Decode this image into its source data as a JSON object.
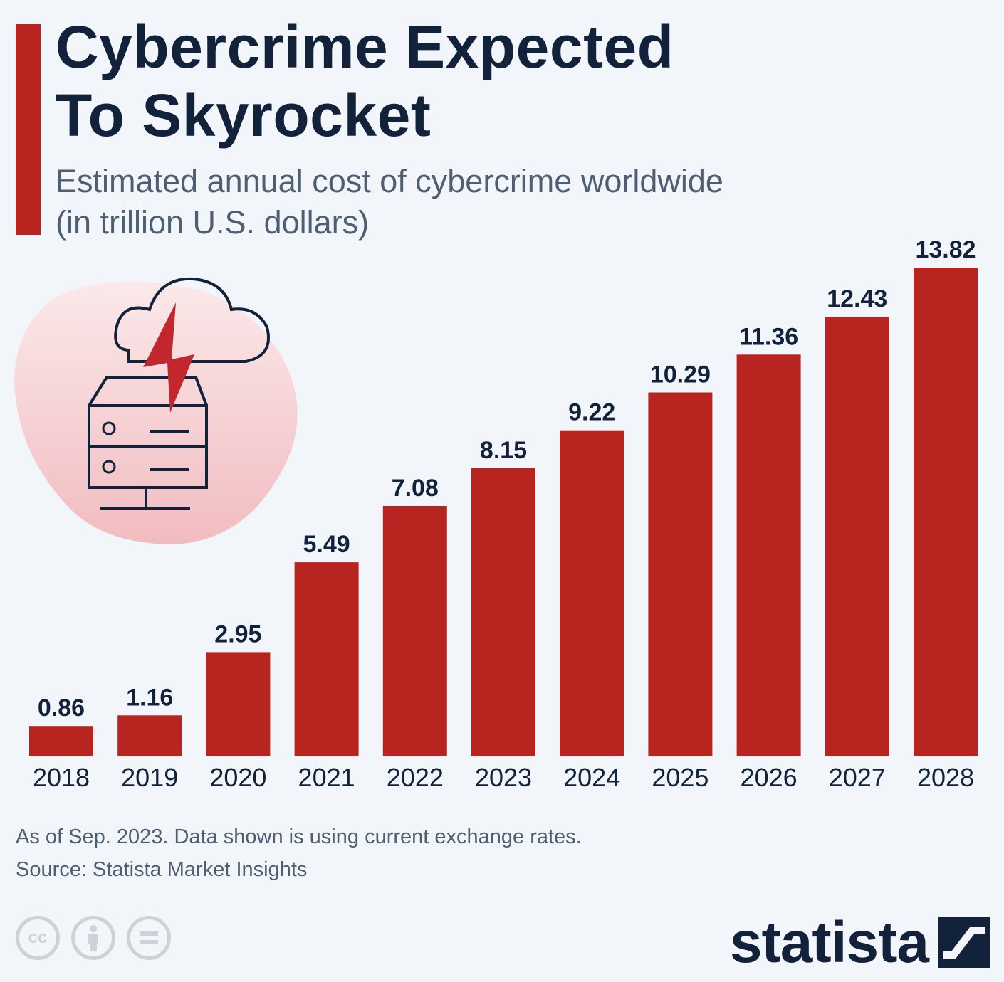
{
  "header": {
    "title_line1": "Cybercrime Expected",
    "title_line2": "To Skyrocket",
    "subtitle_line1": "Estimated annual cost of cybercrime worldwide",
    "subtitle_line2": "(in trillion U.S. dollars)"
  },
  "colors": {
    "accent": "#b8241f",
    "bar": "#b8241f",
    "text": "#12223a",
    "muted": "#4f5f73",
    "background": "#f2f6fa"
  },
  "chart_data": {
    "type": "bar",
    "title": "Cybercrime Expected To Skyrocket",
    "subtitle": "Estimated annual cost of cybercrime worldwide (in trillion U.S. dollars)",
    "xlabel": "",
    "ylabel": "",
    "categories": [
      "2018",
      "2019",
      "2020",
      "2021",
      "2022",
      "2023",
      "2024",
      "2025",
      "2026",
      "2027",
      "2028"
    ],
    "values": [
      0.86,
      1.16,
      2.95,
      5.49,
      7.08,
      8.15,
      9.22,
      10.29,
      11.36,
      12.43,
      13.82
    ],
    "value_labels": [
      "0.86",
      "1.16",
      "2.95",
      "5.49",
      "7.08",
      "8.15",
      "9.22",
      "10.29",
      "11.36",
      "12.43",
      "13.82"
    ],
    "ylim": [
      0,
      13.82
    ],
    "grid": false,
    "legend": "none",
    "data_labels": "above bars"
  },
  "footer": {
    "note": "As of Sep. 2023. Data shown is using current exchange rates.",
    "source": "Source: Statista Market Insights",
    "cc_label": "cc",
    "brand": "statista"
  },
  "icons": {
    "illustration": "cloud-lightning-server-icon",
    "license": [
      "cc-icon",
      "attribution-icon",
      "no-derivatives-icon"
    ],
    "brand_mark": "statista-logo-icon"
  }
}
